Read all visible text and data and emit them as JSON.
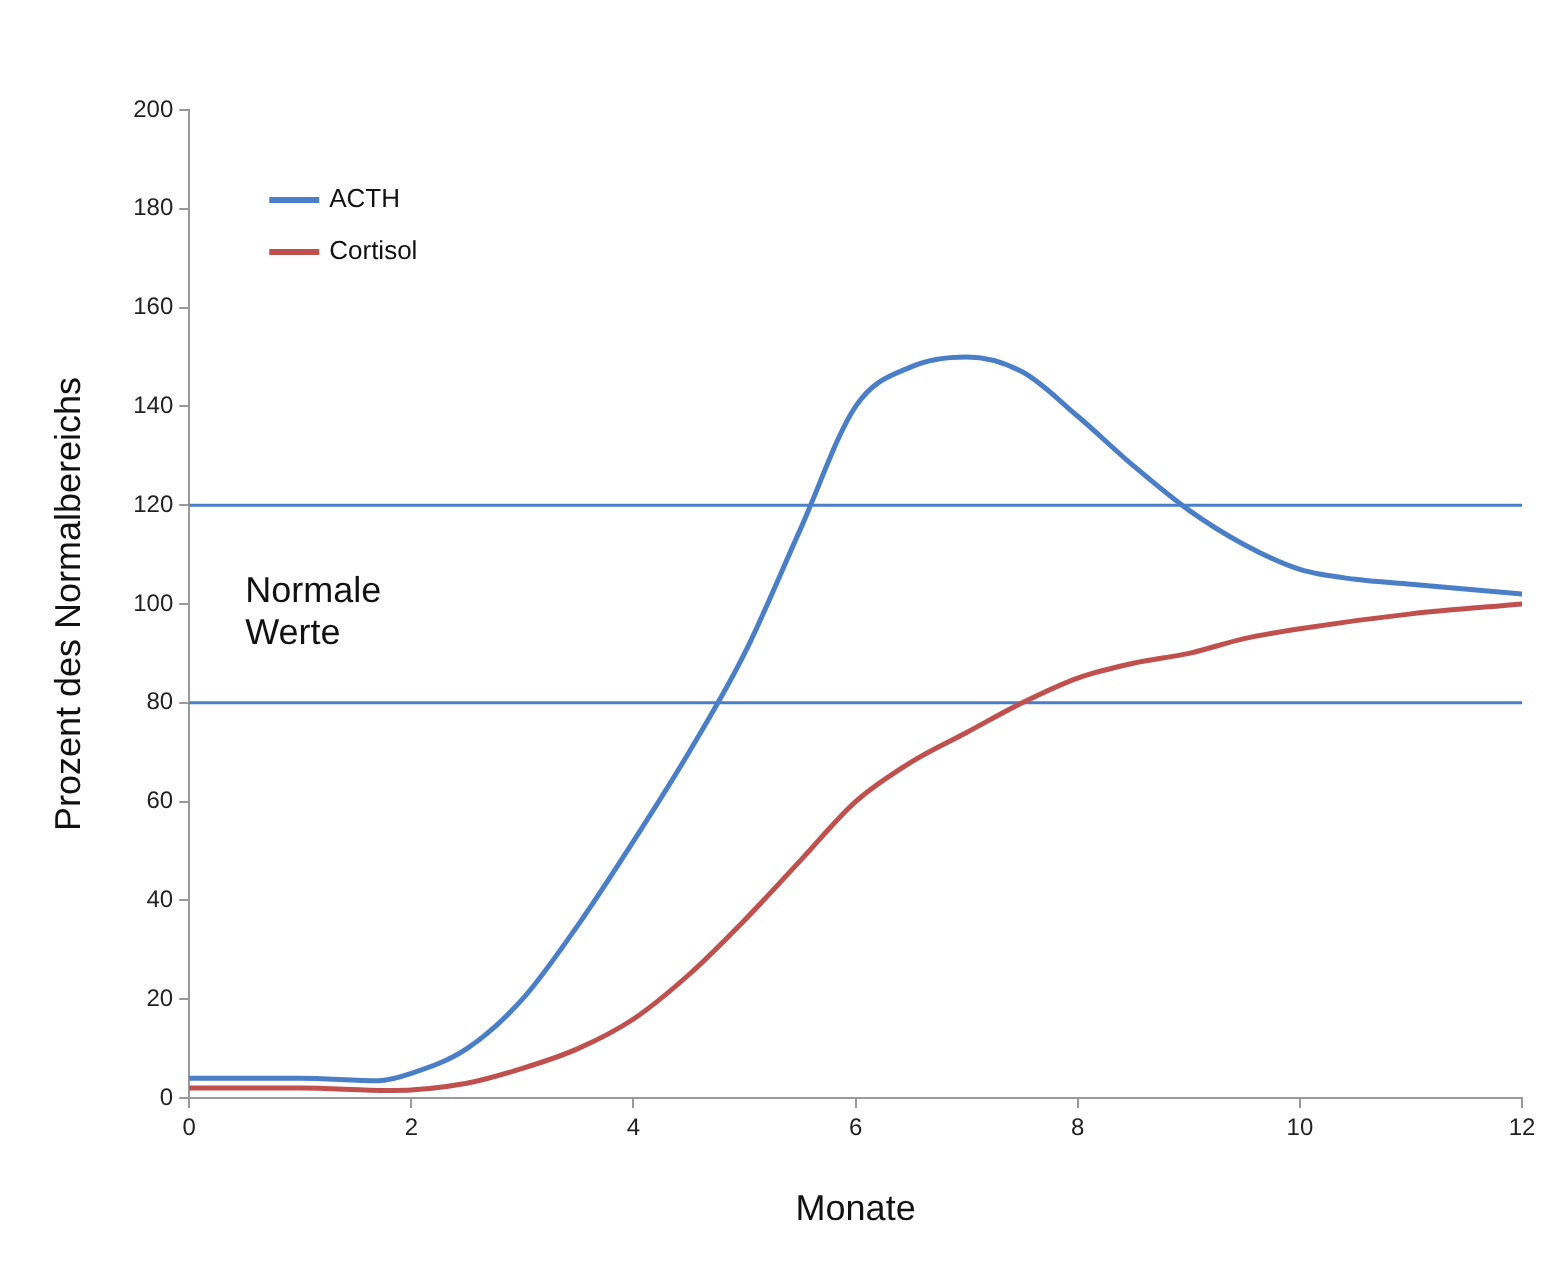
{
  "chart_data": {
    "type": "line",
    "xlabel": "Monate",
    "ylabel": "Prozent des Normalbereichs",
    "xlim": [
      0,
      12
    ],
    "xticks": [
      0,
      2,
      4,
      6,
      8,
      10,
      12
    ],
    "ylim": [
      0,
      200
    ],
    "yticks": [
      0,
      20,
      40,
      60,
      80,
      100,
      120,
      140,
      160,
      180,
      200
    ],
    "grid": false,
    "legend": "top left",
    "marker": "none",
    "line_style": "solid",
    "series": [
      {
        "name": "ACTH",
        "color": "#4a7fc8",
        "x": [
          0,
          1,
          1.7,
          2,
          2.5,
          3,
          3.5,
          4,
          4.5,
          5,
          5.5,
          6,
          6.5,
          7,
          7.5,
          8,
          8.5,
          9,
          9.5,
          10,
          10.5,
          11,
          12
        ],
        "values": [
          4,
          4,
          3.5,
          5,
          10,
          20,
          35,
          52,
          70,
          90,
          115,
          140,
          148,
          150,
          147,
          138,
          128,
          119,
          112,
          107,
          105,
          104,
          102
        ]
      },
      {
        "name": "Cortisol",
        "color": "#c0504d",
        "x": [
          0,
          1,
          1.8,
          2.5,
          3,
          3.5,
          4,
          4.5,
          5,
          5.5,
          6,
          6.5,
          7,
          7.5,
          8,
          8.5,
          9,
          9.5,
          10,
          11,
          12
        ],
        "values": [
          2,
          2,
          1.5,
          3,
          6,
          10,
          16,
          25,
          36,
          48,
          60,
          68,
          74,
          80,
          85,
          88,
          90,
          93,
          95,
          98,
          100
        ]
      }
    ],
    "ref_lines": [
      {
        "axis": "y",
        "value": 120,
        "color": "#4a7fc8"
      },
      {
        "axis": "y",
        "value": 80,
        "color": "#4a7fc8"
      }
    ],
    "annotations": [
      "Normale\nWerte"
    ]
  }
}
